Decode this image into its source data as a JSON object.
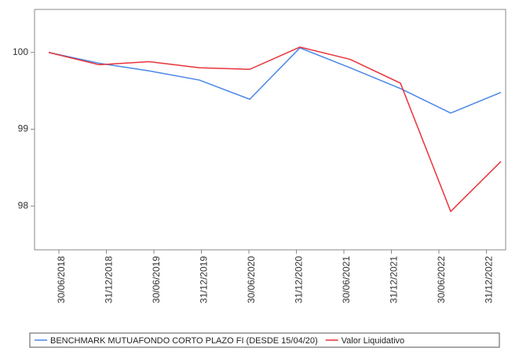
{
  "chart_data": {
    "type": "line",
    "categories": [
      "30/06/2018",
      "31/12/2018",
      "30/06/2019",
      "31/12/2019",
      "30/06/2020",
      "31/12/2020",
      "30/06/2021",
      "31/12/2021",
      "30/06/2022",
      "31/12/2022"
    ],
    "series": [
      {
        "name": "BENCHMARK MUTUAFONDO CORTO PLAZO FI (DESDE 15/04/20)",
        "color": "#4a86e8",
        "values": [
          100,
          99.86,
          99.76,
          99.64,
          99.39,
          100.06,
          99.8,
          99.53,
          99.21,
          99.48
        ]
      },
      {
        "name": "Valor Liquidativo",
        "color": "#e8333a",
        "values": [
          100,
          99.84,
          99.88,
          99.8,
          99.78,
          100.07,
          99.91,
          99.6,
          97.93,
          98.58
        ]
      }
    ],
    "ylim": [
      97.43,
      100.56
    ],
    "yticks": [
      98,
      99,
      100
    ],
    "grid": false
  }
}
